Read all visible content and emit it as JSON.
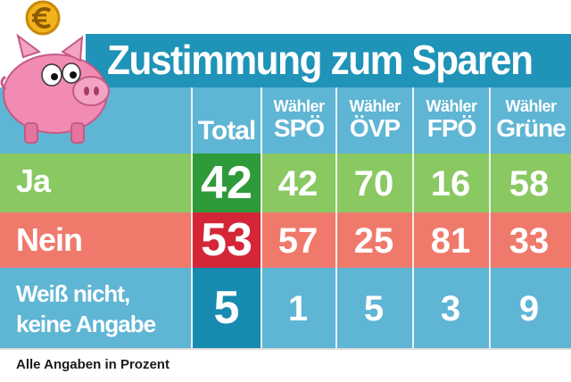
{
  "title": "Zustimmung zum Sparen",
  "footer": "Alle Angaben in Prozent",
  "colors": {
    "title_bg": "#1f93b8",
    "header_bg": "#5fb5d4",
    "ja_bg": "#8ac862",
    "nein_bg": "#ef7a6c",
    "weiss_bg": "#5fb5d4",
    "total_ja": "#2f9a3a",
    "total_nein": "#d42637",
    "total_weiss": "#178ab0"
  },
  "chart_data": {
    "type": "table",
    "title": "Zustimmung zum Sparen",
    "unit": "Prozent",
    "columns": [
      {
        "key": "total",
        "label_top": "",
        "label": "Total"
      },
      {
        "key": "spoe",
        "label_top": "Wähler",
        "label": "SPÖ"
      },
      {
        "key": "oevp",
        "label_top": "Wähler",
        "label": "ÖVP"
      },
      {
        "key": "fpoe",
        "label_top": "Wähler",
        "label": "FPÖ"
      },
      {
        "key": "gruene",
        "label_top": "Wähler",
        "label": "Grüne"
      }
    ],
    "rows": [
      {
        "label": "Ja",
        "values": [
          42,
          42,
          70,
          16,
          58
        ]
      },
      {
        "label": "Nein",
        "values": [
          53,
          57,
          25,
          81,
          33
        ]
      },
      {
        "label_lines": [
          "Weiß nicht,",
          "keine Angabe"
        ],
        "values": [
          5,
          1,
          5,
          3,
          9
        ]
      }
    ]
  },
  "icons": [
    "piggy-bank-icon",
    "euro-coin-icon"
  ]
}
